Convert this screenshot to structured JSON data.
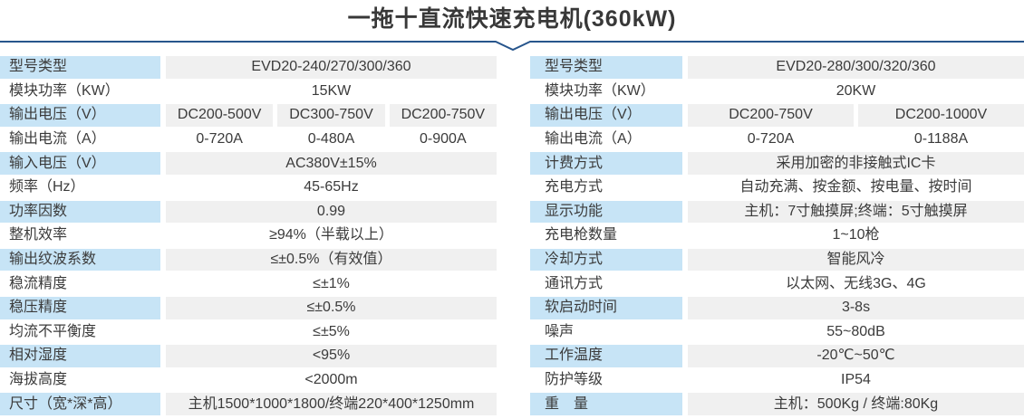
{
  "title": "一拖十直流快速充电机(360kW)",
  "colors": {
    "label_bg": "#c7e4f6",
    "value_bg": "#f0f0f0",
    "divider": "#27558c",
    "text": "#3b3b3b"
  },
  "tables": [
    {
      "id": "left",
      "rows": [
        {
          "label": "型号类型",
          "values": [
            "EVD20-240/270/300/360"
          ],
          "shaded": true
        },
        {
          "label": "模块功率（KW）",
          "values": [
            "15KW"
          ],
          "shaded": false
        },
        {
          "label": "输出电压（V）",
          "values": [
            "DC200-500V",
            "DC300-750V",
            "DC200-750V"
          ],
          "shaded": true
        },
        {
          "label": "输出电流（A）",
          "values": [
            "0-720A",
            "0-480A",
            "0-900A"
          ],
          "shaded": false
        },
        {
          "label": "输入电压（V）",
          "values": [
            "AC380V±15%"
          ],
          "shaded": true
        },
        {
          "label": "频率（Hz）",
          "values": [
            "45-65Hz"
          ],
          "shaded": false
        },
        {
          "label": "功率因数",
          "values": [
            "0.99"
          ],
          "shaded": true
        },
        {
          "label": "整机效率",
          "values": [
            "≥94%（半载以上）"
          ],
          "shaded": false
        },
        {
          "label": "输出纹波系数",
          "values": [
            "≤±0.5%（有效值）"
          ],
          "shaded": true
        },
        {
          "label": "稳流精度",
          "values": [
            "≤±1%"
          ],
          "shaded": false
        },
        {
          "label": "稳压精度",
          "values": [
            "≤±0.5%"
          ],
          "shaded": true
        },
        {
          "label": "均流不平衡度",
          "values": [
            "≤±5%"
          ],
          "shaded": false
        },
        {
          "label": "相对湿度",
          "values": [
            "<95%"
          ],
          "shaded": true
        },
        {
          "label": "海拔高度",
          "values": [
            "<2000m"
          ],
          "shaded": false
        },
        {
          "label": "尺寸（宽*深*高）",
          "values": [
            "主机1500*1000*1800/终端220*400*1250mm"
          ],
          "shaded": true
        }
      ]
    },
    {
      "id": "right",
      "rows": [
        {
          "label": "型号类型",
          "values": [
            "EVD20-280/300/320/360"
          ],
          "shaded": true
        },
        {
          "label": "模块功率（KW）",
          "values": [
            "20KW"
          ],
          "shaded": false
        },
        {
          "label": "输出电压（V）",
          "values": [
            "DC200-750V",
            "DC200-1000V"
          ],
          "shaded": true
        },
        {
          "label": "输出电流（A）",
          "values": [
            "0-720A",
            "0-1188A"
          ],
          "shaded": false
        },
        {
          "label": "计费方式",
          "values": [
            "采用加密的非接触式IC卡"
          ],
          "shaded": true
        },
        {
          "label": "充电方式",
          "values": [
            "自动充满、按金额、按电量、按时间"
          ],
          "shaded": false
        },
        {
          "label": "显示功能",
          "values": [
            "主机：7寸触摸屏;终端：5寸触摸屏"
          ],
          "shaded": true
        },
        {
          "label": "充电枪数量",
          "values": [
            "1~10枪"
          ],
          "shaded": false
        },
        {
          "label": "冷却方式",
          "values": [
            "智能风冷"
          ],
          "shaded": true
        },
        {
          "label": "通讯方式",
          "values": [
            "以太网、无线3G、4G"
          ],
          "shaded": false
        },
        {
          "label": "软启动时间",
          "values": [
            "3-8s"
          ],
          "shaded": true
        },
        {
          "label": "噪声",
          "values": [
            "55~80dB"
          ],
          "shaded": false
        },
        {
          "label": "工作温度",
          "values": [
            "-20℃~50℃"
          ],
          "shaded": true
        },
        {
          "label": "防护等级",
          "values": [
            "IP54"
          ],
          "shaded": false
        },
        {
          "label": "重　量",
          "values": [
            "主机：500Kg / 终端:80Kg"
          ],
          "shaded": true
        }
      ]
    }
  ]
}
